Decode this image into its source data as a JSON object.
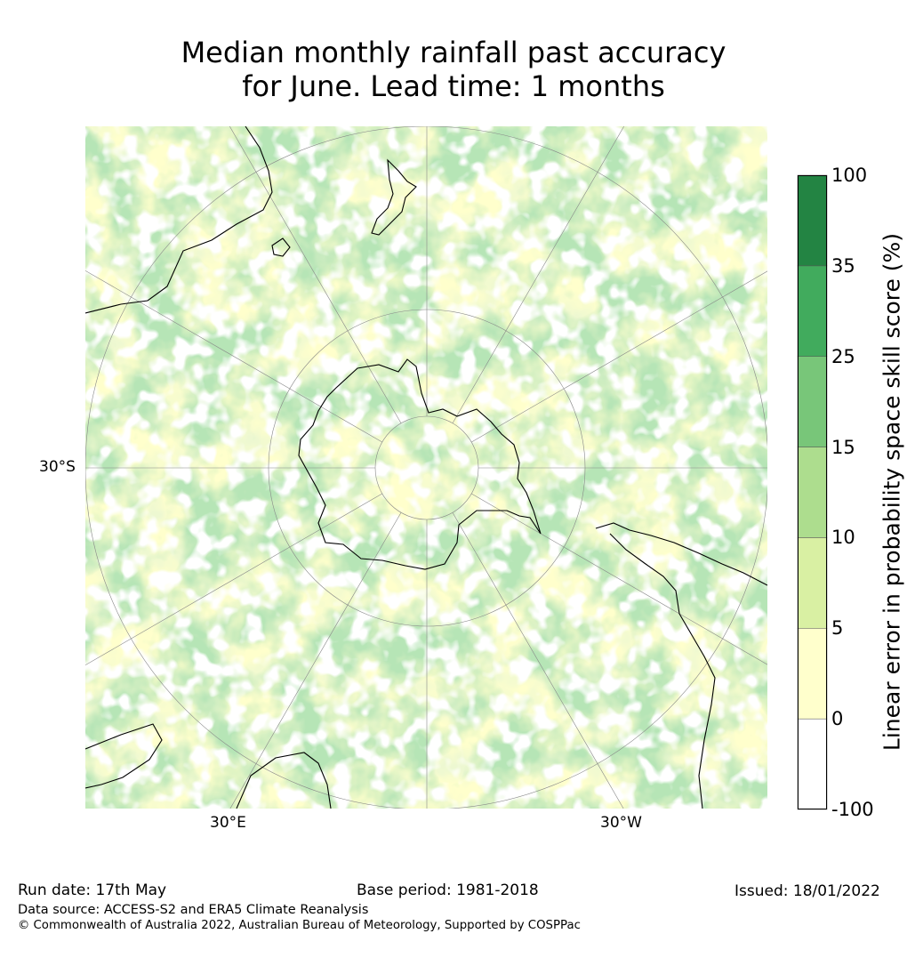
{
  "title": {
    "line1": "Median monthly rainfall past accuracy",
    "line2": "for June. Lead time: 1 months"
  },
  "map": {
    "projection": "south-polar-stereographic",
    "grid": true,
    "axis_labels": {
      "left": "30°S",
      "bottom_left": "30°E",
      "bottom_right": "30°W"
    },
    "background_color": "#ffffcc"
  },
  "colorbar": {
    "label": "Linear error in probability space skill score (%)",
    "ticks": [
      "100",
      "35",
      "25",
      "15",
      "10",
      "5",
      "0",
      "-100"
    ],
    "bins": [
      {
        "from": -100,
        "to": 0,
        "color": "#ffffff"
      },
      {
        "from": 0,
        "to": 5,
        "color": "#ffffcc"
      },
      {
        "from": 5,
        "to": 10,
        "color": "#d9f0a3"
      },
      {
        "from": 10,
        "to": 15,
        "color": "#addd8e"
      },
      {
        "from": 15,
        "to": 25,
        "color": "#78c679"
      },
      {
        "from": 25,
        "to": 35,
        "color": "#41ab5d"
      },
      {
        "from": 35,
        "to": 100,
        "color": "#238443"
      }
    ]
  },
  "footer": {
    "run_date": "Run date: 17th May",
    "base_period": "Base period: 1981-2018",
    "issued": "Issued: 18/01/2022",
    "data_source": "Data source: ACCESS-S2 and ERA5 Climate Reanalysis",
    "copyright": "© Commonwealth of Australia 2022, Australian Bureau of Meteorology, Supported by COSPPac"
  }
}
